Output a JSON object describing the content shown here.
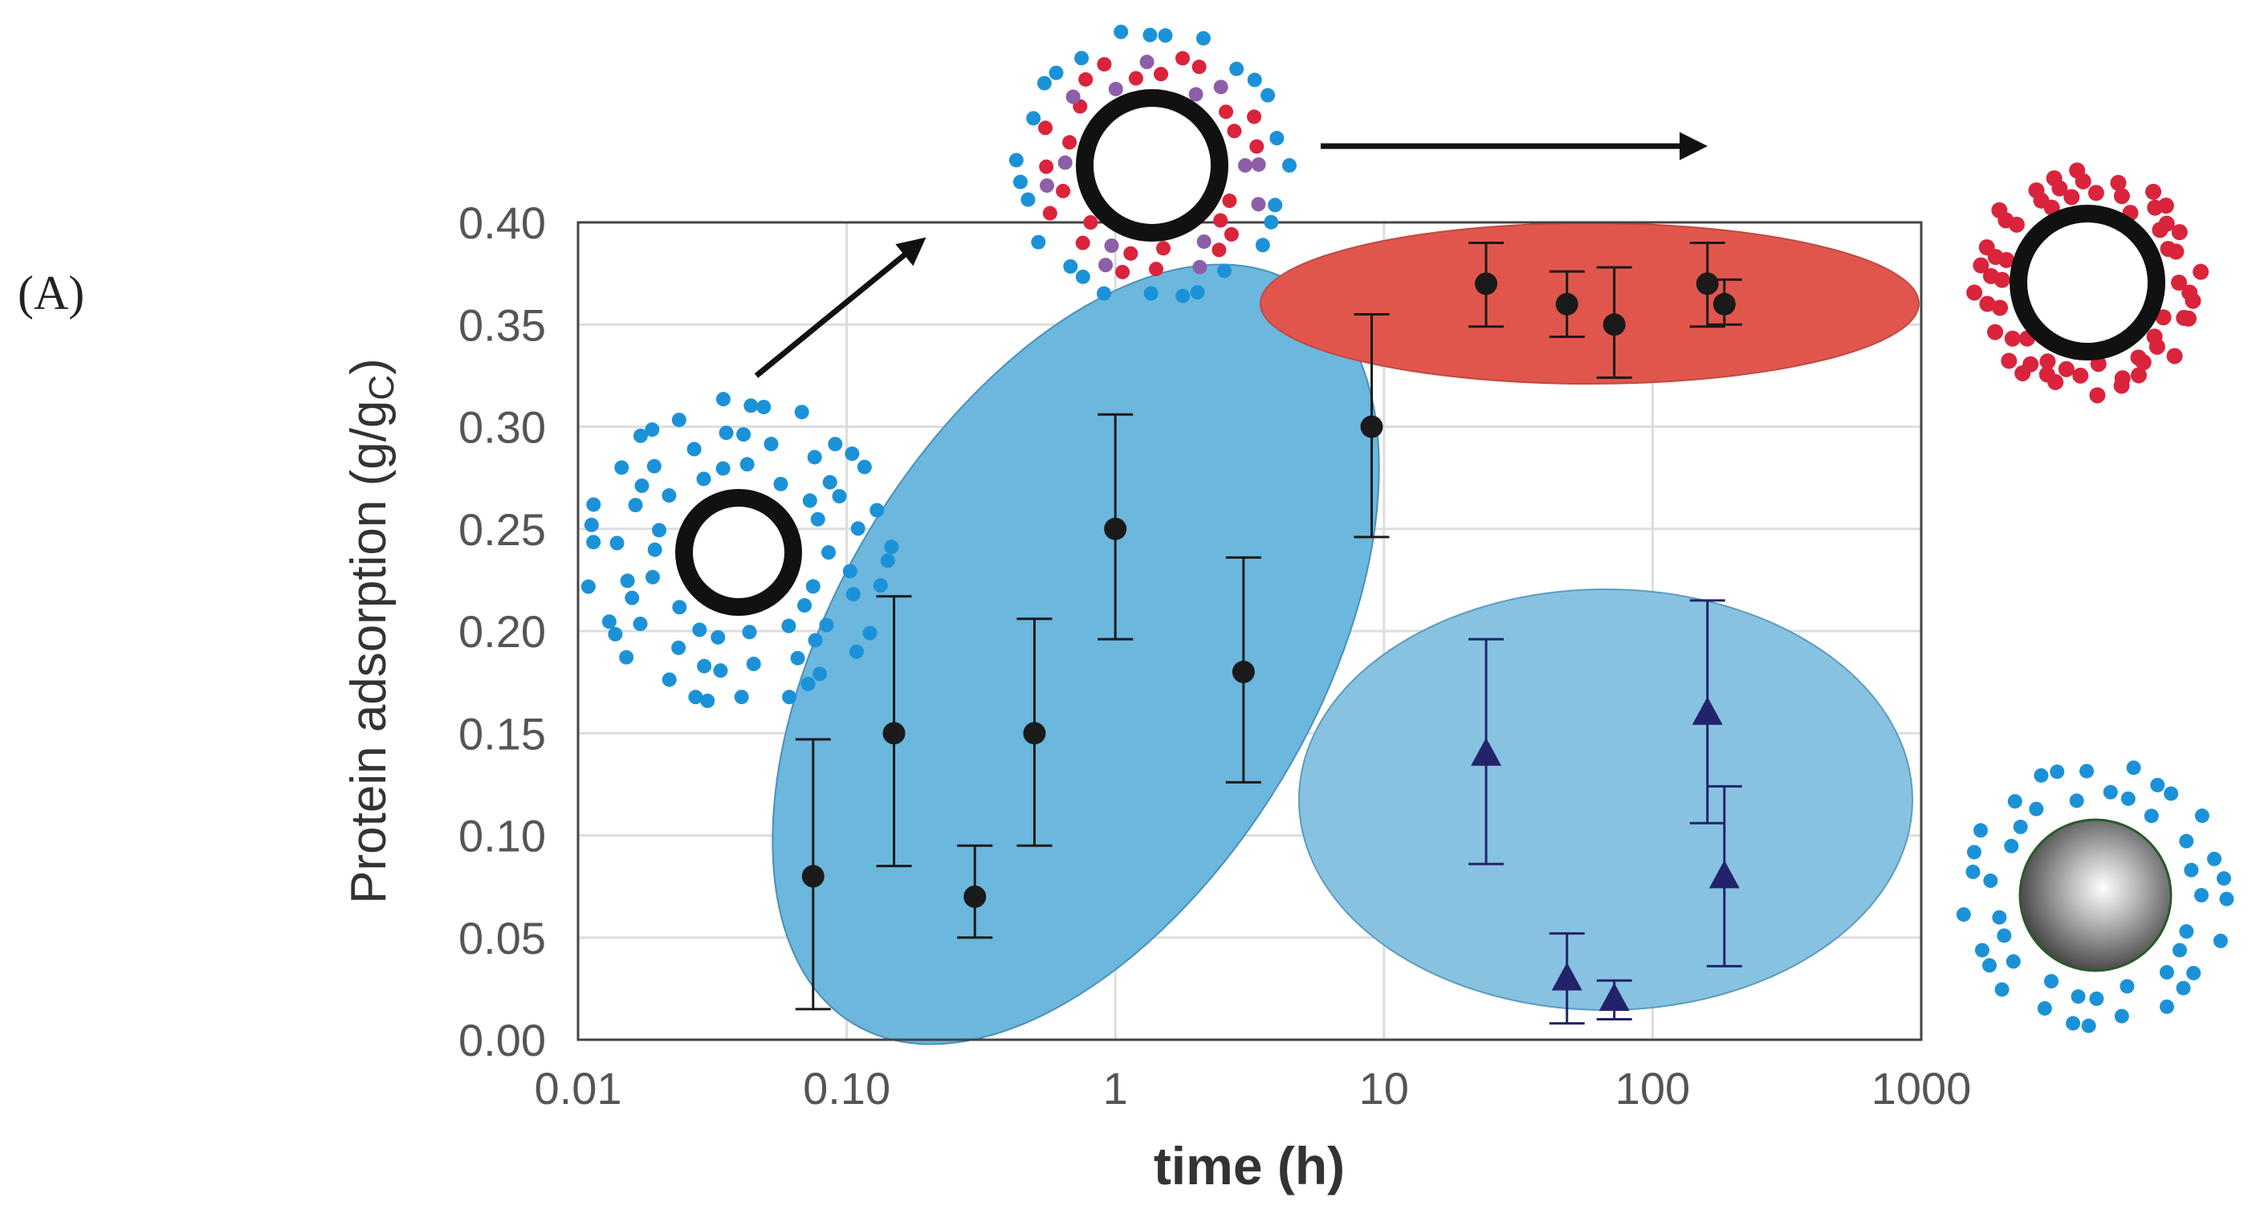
{
  "panel_label": "(A)",
  "chart_data": {
    "type": "scatter",
    "xscale": "log",
    "xlabel": "time (h)",
    "ylabel": "Protein adsorption (g/gc)",
    "ylabel_parts": {
      "main": "Protein adsorption (g/g",
      "sub": "C",
      "close": ")"
    },
    "xlim": [
      0.01,
      1000
    ],
    "ylim": [
      0,
      0.4
    ],
    "x_ticks": [
      {
        "value": 0.01,
        "label": "0.01"
      },
      {
        "value": 0.1,
        "label": "0.10"
      },
      {
        "value": 1,
        "label": "1"
      },
      {
        "value": 10,
        "label": "10"
      },
      {
        "value": 100,
        "label": "100"
      },
      {
        "value": 1000,
        "label": "1000"
      }
    ],
    "y_ticks": [
      {
        "value": 0,
        "label": "0.00"
      },
      {
        "value": 0.05,
        "label": "0.05"
      },
      {
        "value": 0.1,
        "label": "0.10"
      },
      {
        "value": 0.15,
        "label": "0.15"
      },
      {
        "value": 0.2,
        "label": "0.20"
      },
      {
        "value": 0.25,
        "label": "0.25"
      },
      {
        "value": 0.3,
        "label": "0.30"
      },
      {
        "value": 0.35,
        "label": "0.35"
      },
      {
        "value": 0.4,
        "label": "0.40"
      }
    ],
    "grid": true,
    "series": [
      {
        "name": "circle markers",
        "marker": "circle",
        "color": "#1a1a1a",
        "points": [
          {
            "x": 0.075,
            "y": 0.08,
            "ylo": 0.015,
            "yhi": 0.147
          },
          {
            "x": 0.15,
            "y": 0.15,
            "ylo": 0.085,
            "yhi": 0.217
          },
          {
            "x": 0.3,
            "y": 0.07,
            "ylo": 0.05,
            "yhi": 0.095
          },
          {
            "x": 0.5,
            "y": 0.15,
            "ylo": 0.095,
            "yhi": 0.206
          },
          {
            "x": 1.0,
            "y": 0.25,
            "ylo": 0.196,
            "yhi": 0.306
          },
          {
            "x": 3.0,
            "y": 0.18,
            "ylo": 0.126,
            "yhi": 0.236
          },
          {
            "x": 9.0,
            "y": 0.3,
            "ylo": 0.246,
            "yhi": 0.355
          },
          {
            "x": 24,
            "y": 0.37,
            "ylo": 0.349,
            "yhi": 0.39
          },
          {
            "x": 48,
            "y": 0.36,
            "ylo": 0.344,
            "yhi": 0.376
          },
          {
            "x": 72,
            "y": 0.35,
            "ylo": 0.324,
            "yhi": 0.378
          },
          {
            "x": 160,
            "y": 0.37,
            "ylo": 0.349,
            "yhi": 0.39
          },
          {
            "x": 185,
            "y": 0.36,
            "ylo": 0.35,
            "yhi": 0.372
          }
        ]
      },
      {
        "name": "triangle markers",
        "marker": "triangle",
        "color": "#23236b",
        "points": [
          {
            "x": 24,
            "y": 0.14,
            "ylo": 0.086,
            "yhi": 0.196
          },
          {
            "x": 48,
            "y": 0.03,
            "ylo": 0.008,
            "yhi": 0.052
          },
          {
            "x": 72,
            "y": 0.02,
            "ylo": 0.01,
            "yhi": 0.029
          },
          {
            "x": 160,
            "y": 0.16,
            "ylo": 0.106,
            "yhi": 0.215
          },
          {
            "x": 185,
            "y": 0.08,
            "ylo": 0.036,
            "yhi": 0.124
          }
        ]
      }
    ]
  },
  "colors": {
    "ellipse_blue": "#6bb7dd",
    "ellipse_blue_light": "#87c3e0",
    "ellipse_red": "#e0564d",
    "protein_blue": "#1b92d8",
    "protein_red": "#d9243c",
    "protein_purple": "#8d5fa8",
    "ring_black": "#111111"
  },
  "icons": [
    "nanoparticle-blue-corona-icon",
    "nanoparticle-mixed-corona-icon",
    "nanoparticle-red-corona-icon",
    "solid-sphere-blue-corona-icon",
    "arrow-icon"
  ]
}
